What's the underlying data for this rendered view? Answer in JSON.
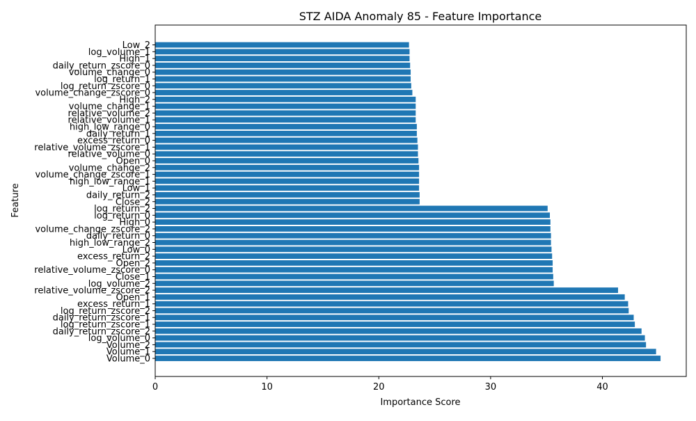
{
  "chart_data": {
    "type": "bar",
    "orientation": "horizontal",
    "title": "STZ AIDA Anomaly 85 - Feature Importance",
    "xlabel": "Importance Score",
    "ylabel": "Feature",
    "xlim": [
      0,
      47.5
    ],
    "xticks": [
      0,
      10,
      20,
      30,
      40
    ],
    "bar_color": "#1f77b4",
    "grid": false,
    "categories": [
      "Low_2",
      "log_volume_1",
      "High_1",
      "daily_return_zscore_0",
      "volume_change_0",
      "log_return_1",
      "log_return_zscore_0",
      "volume_change_zscore_0",
      "High_2",
      "volume_change_1",
      "relative_volume_2",
      "relative_volume_1",
      "high_low_range_0",
      "daily_return_1",
      "excess_return_0",
      "relative_volume_zscore_1",
      "relative_volume_0",
      "Open_0",
      "volume_change_2",
      "volume_change_zscore_1",
      "high_low_range_1",
      "Low_1",
      "daily_return_2",
      "Close_2",
      "log_return_2",
      "log_return_0",
      "High_0",
      "volume_change_zscore_2",
      "daily_return_0",
      "high_low_range_2",
      "Low_0",
      "excess_return_2",
      "Open_2",
      "relative_volume_zscore_0",
      "Close_1",
      "log_volume_2",
      "relative_volume_zscore_2",
      "Open_1",
      "excess_return_1",
      "log_return_zscore_2",
      "daily_return_zscore_1",
      "log_return_zscore_1",
      "daily_return_zscore_2",
      "log_volume_0",
      "Volume_2",
      "Volume_1",
      "Volume_0"
    ],
    "values": [
      22.7,
      22.75,
      22.75,
      22.8,
      22.85,
      22.85,
      22.9,
      23.0,
      23.3,
      23.3,
      23.3,
      23.3,
      23.4,
      23.4,
      23.45,
      23.5,
      23.5,
      23.55,
      23.6,
      23.6,
      23.6,
      23.6,
      23.65,
      23.65,
      35.1,
      35.3,
      35.35,
      35.35,
      35.4,
      35.4,
      35.45,
      35.5,
      35.55,
      35.55,
      35.6,
      35.65,
      41.4,
      42.0,
      42.3,
      42.35,
      42.8,
      42.9,
      43.5,
      43.8,
      43.9,
      44.8,
      45.2
    ]
  }
}
